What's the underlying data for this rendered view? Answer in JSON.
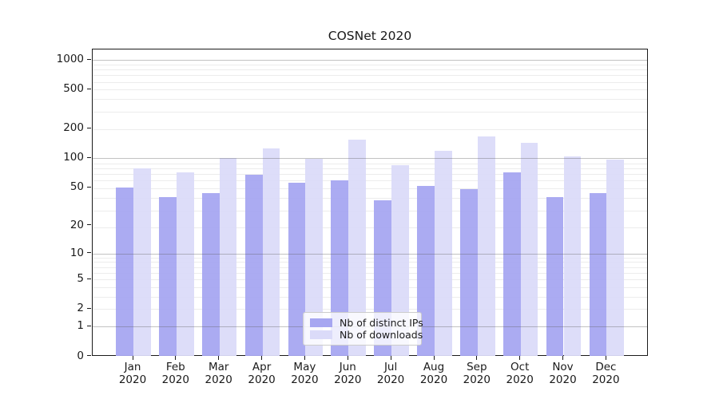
{
  "title": "COSNet 2020",
  "legend": {
    "items": [
      {
        "label": "Nb of distinct IPs",
        "color": "#a6a6f1"
      },
      {
        "label": "Nb of downloads",
        "color": "#dbdbf9"
      }
    ]
  },
  "chart_data": {
    "type": "bar",
    "title": "COSNet 2020",
    "categories": [
      "Jan 2020",
      "Feb 2020",
      "Mar 2020",
      "Apr 2020",
      "May 2020",
      "Jun 2020",
      "Jul 2020",
      "Aug 2020",
      "Sep 2020",
      "Oct 2020",
      "Nov 2020",
      "Dec 2020"
    ],
    "series": [
      {
        "name": "Nb of distinct IPs",
        "color": "#a6a6f1",
        "values": [
          50,
          40,
          44,
          68,
          56,
          60,
          37,
          52,
          48,
          72,
          40,
          44
        ]
      },
      {
        "name": "Nb of downloads",
        "color": "#dbdbf9",
        "values": [
          79,
          72,
          100,
          127,
          98,
          155,
          85,
          120,
          166,
          145,
          105,
          97
        ]
      }
    ],
    "xlabel": "",
    "ylabel": "",
    "yscale": "log(1+x)",
    "yticks": [
      1000,
      500,
      200,
      100,
      50,
      20,
      10,
      5,
      2,
      1,
      0
    ],
    "ylim": [
      0,
      1100
    ],
    "grid": true,
    "major_grid_values": [
      1,
      10,
      100,
      1000
    ],
    "legend_position": "lower center"
  }
}
